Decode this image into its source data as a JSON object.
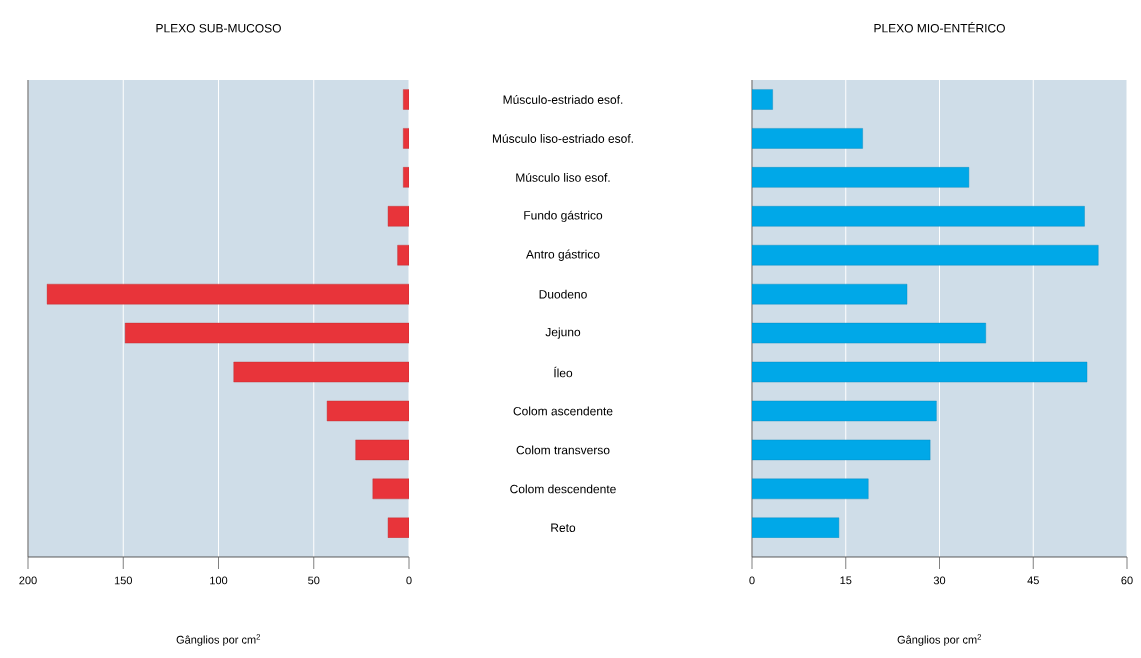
{
  "chart_data": [
    {
      "type": "bar",
      "orientation": "horizontal",
      "title": "PLEXO SUB-MUCOSO",
      "xlabel": "Gânglios por cm$^{2}$",
      "categories": [
        "Músculo-estriado esof.",
        "Músculo liso-estriado esof.",
        "Músculo liso esof.",
        "Fundo gástrico",
        "Antro gástrico",
        "Duodeno",
        "Jejuno",
        "Íleo",
        "Colom ascendente",
        "Colom transverso",
        "Colom descendente",
        "Reto"
      ],
      "values": [
        3,
        3,
        3,
        11,
        6,
        190,
        149,
        92,
        43,
        28,
        19,
        11
      ],
      "color": "#e8343a",
      "xlim": [
        200,
        0
      ],
      "xticks": [
        200,
        150,
        100,
        50,
        0
      ],
      "grid": "x"
    },
    {
      "type": "bar",
      "orientation": "horizontal",
      "title": "PLEXO MIO-ENTÉRICO",
      "xlabel": "Gânglios por cm$^{2}$",
      "values": [
        3.3,
        17.7,
        34.7,
        53.2,
        55.4,
        24.8,
        37.4,
        53.6,
        29.5,
        28.5,
        18.6,
        13.9
      ],
      "color": "#00a8e8",
      "xlim": [
        0,
        60
      ],
      "xticks": [
        0,
        15,
        30,
        45,
        60
      ],
      "grid": "x",
      "tick_labels": "x"
    }
  ]
}
